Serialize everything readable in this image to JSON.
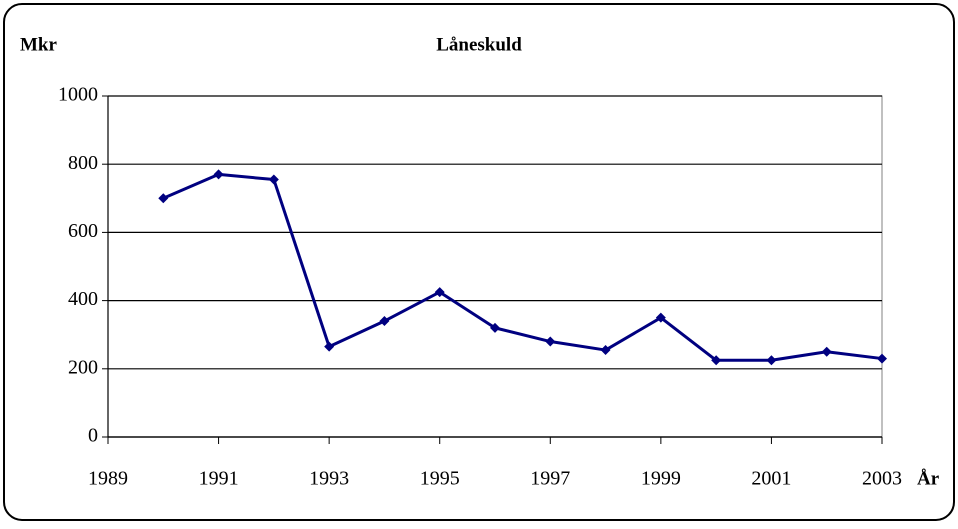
{
  "chart_data": {
    "type": "line",
    "title": "Låneskuld",
    "ylabel": "Mkr",
    "xlabel": "År",
    "x": [
      1990,
      1991,
      1992,
      1993,
      1994,
      1995,
      1996,
      1997,
      1998,
      1999,
      2000,
      2001,
      2002,
      2003
    ],
    "series": [
      {
        "name": "Låneskuld",
        "color": "#000080",
        "values": [
          700,
          770,
          755,
          265,
          340,
          425,
          320,
          280,
          255,
          350,
          225,
          225,
          250,
          230
        ]
      }
    ],
    "xlim": [
      1989,
      2003
    ],
    "xticks": [
      1989,
      1991,
      1993,
      1995,
      1997,
      1999,
      2001,
      2003
    ],
    "ylim": [
      0,
      1000
    ],
    "yticks": [
      0,
      200,
      400,
      600,
      800,
      1000
    ],
    "grid": true
  }
}
